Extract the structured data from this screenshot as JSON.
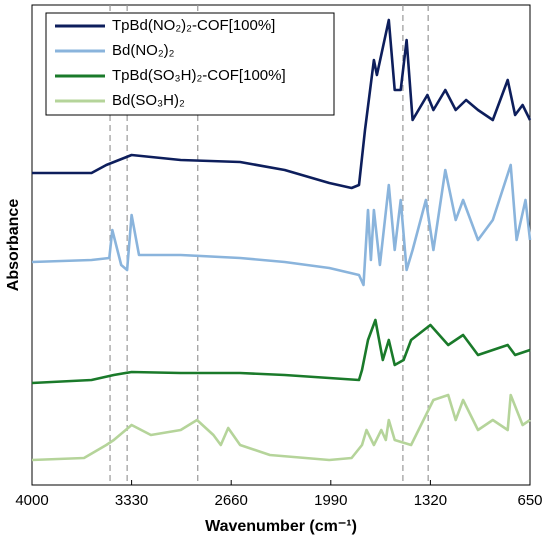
{
  "chart_data": {
    "type": "line",
    "xlabel": "Wavenumber (cm⁻¹)",
    "ylabel": "Absorbance",
    "xlim": [
      4000,
      650
    ],
    "xticks": [
      4000,
      3330,
      2660,
      1990,
      1320,
      650
    ],
    "ylim": [
      0,
      480
    ],
    "vlines": [
      3475,
      3360,
      2885,
      1505,
      1335
    ],
    "legend": "upper left",
    "series": [
      {
        "name": "TpBd(NO₂)₂-COF[100%]",
        "color": "#0d1e5c",
        "x": [
          4000,
          3600,
          3500,
          3330,
          3000,
          2600,
          2300,
          2000,
          1850,
          1800,
          1760,
          1700,
          1680,
          1600,
          1560,
          1520,
          1480,
          1440,
          1400,
          1340,
          1300,
          1220,
          1150,
          1080,
          1000,
          900,
          800,
          750,
          700,
          650
        ],
        "values": [
          312,
          312,
          320,
          330,
          325,
          323,
          315,
          302,
          297,
          300,
          355,
          425,
          410,
          465,
          395,
          395,
          445,
          365,
          375,
          390,
          375,
          395,
          375,
          385,
          375,
          365,
          405,
          370,
          380,
          365
        ]
      },
      {
        "name": "Bd(NO₂)₂",
        "color": "#8ab4dc",
        "x": [
          4000,
          3600,
          3480,
          3460,
          3400,
          3360,
          3330,
          3280,
          3000,
          2600,
          2300,
          2000,
          1800,
          1770,
          1740,
          1720,
          1700,
          1660,
          1600,
          1560,
          1520,
          1480,
          1440,
          1350,
          1300,
          1220,
          1150,
          1100,
          1000,
          900,
          780,
          740,
          680,
          650
        ],
        "values": [
          223,
          225,
          227,
          255,
          220,
          215,
          270,
          230,
          230,
          227,
          223,
          217,
          210,
          200,
          275,
          225,
          275,
          220,
          300,
          235,
          285,
          215,
          235,
          285,
          235,
          315,
          265,
          285,
          245,
          265,
          320,
          245,
          285,
          245
        ]
      },
      {
        "name": "TpBd(SO₃H)₂-COF[100%]",
        "color": "#1a7a2a",
        "x": [
          4000,
          3600,
          3450,
          3330,
          3000,
          2600,
          2300,
          2000,
          1800,
          1780,
          1740,
          1690,
          1640,
          1600,
          1560,
          1500,
          1450,
          1320,
          1200,
          1100,
          1000,
          900,
          800,
          750,
          650
        ],
        "values": [
          102,
          105,
          110,
          113,
          112,
          112,
          110,
          107,
          105,
          115,
          145,
          165,
          125,
          145,
          120,
          125,
          145,
          160,
          140,
          150,
          130,
          135,
          140,
          130,
          135
        ]
      },
      {
        "name": "Bd(SO₃H)₂",
        "color": "#b5d49a",
        "x": [
          4000,
          3650,
          3500,
          3450,
          3330,
          3200,
          3000,
          2890,
          2780,
          2730,
          2680,
          2600,
          2400,
          2000,
          1850,
          1780,
          1750,
          1700,
          1650,
          1620,
          1600,
          1560,
          1450,
          1300,
          1200,
          1150,
          1100,
          1000,
          900,
          800,
          780,
          700,
          650
        ],
        "values": [
          25,
          27,
          40,
          45,
          60,
          50,
          55,
          65,
          50,
          40,
          57,
          40,
          30,
          25,
          27,
          40,
          55,
          40,
          55,
          45,
          65,
          45,
          40,
          85,
          90,
          65,
          85,
          55,
          65,
          55,
          90,
          60,
          65
        ]
      }
    ]
  }
}
